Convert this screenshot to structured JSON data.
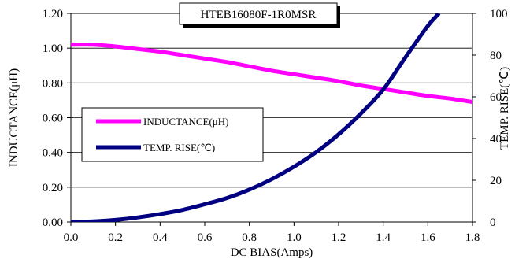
{
  "chart_data": {
    "type": "line",
    "title": "HTEB16080F-1R0MSR",
    "xlabel": "DC BIAS(Amps)",
    "ylabel_left": "INDUCTANCE(μH)",
    "ylabel_right": "TEMP. RISE(℃)",
    "xlim": [
      0,
      1.8
    ],
    "ylim_left": [
      0,
      1.2
    ],
    "ylim_right": [
      0,
      100
    ],
    "x_ticks": [
      "0.0",
      "0.2",
      "0.4",
      "0.6",
      "0.8",
      "1.0",
      "1.2",
      "1.4",
      "1.6",
      "1.8"
    ],
    "y_ticks_left": [
      "0.00",
      "0.20",
      "0.40",
      "0.60",
      "0.80",
      "1.00",
      "1.20"
    ],
    "y_ticks_right": [
      "0",
      "20",
      "40",
      "60",
      "80",
      "100"
    ],
    "grid": "horizontal",
    "legend_position": "center-left",
    "series": [
      {
        "name": "INDUCTANCE(μH)",
        "axis": "left",
        "color": "#ff00ff",
        "x": [
          0.0,
          0.1,
          0.2,
          0.3,
          0.4,
          0.5,
          0.6,
          0.7,
          0.8,
          0.9,
          1.0,
          1.1,
          1.2,
          1.3,
          1.4,
          1.5,
          1.6,
          1.7,
          1.8
        ],
        "y": [
          1.02,
          1.02,
          1.01,
          0.995,
          0.98,
          0.96,
          0.94,
          0.92,
          0.895,
          0.87,
          0.85,
          0.83,
          0.81,
          0.785,
          0.765,
          0.745,
          0.725,
          0.71,
          0.69
        ]
      },
      {
        "name": "TEMP. RISE(℃)",
        "axis": "right",
        "color": "#000080",
        "x": [
          0.0,
          0.1,
          0.2,
          0.3,
          0.4,
          0.5,
          0.6,
          0.7,
          0.8,
          0.9,
          1.0,
          1.1,
          1.2,
          1.3,
          1.4,
          1.5,
          1.6,
          1.65
        ],
        "y": [
          0,
          0.3,
          1,
          2.2,
          3.8,
          5.8,
          8.5,
          11.5,
          15.5,
          20.5,
          26.5,
          33.5,
          42,
          52,
          63.5,
          79,
          94,
          100
        ]
      }
    ]
  }
}
